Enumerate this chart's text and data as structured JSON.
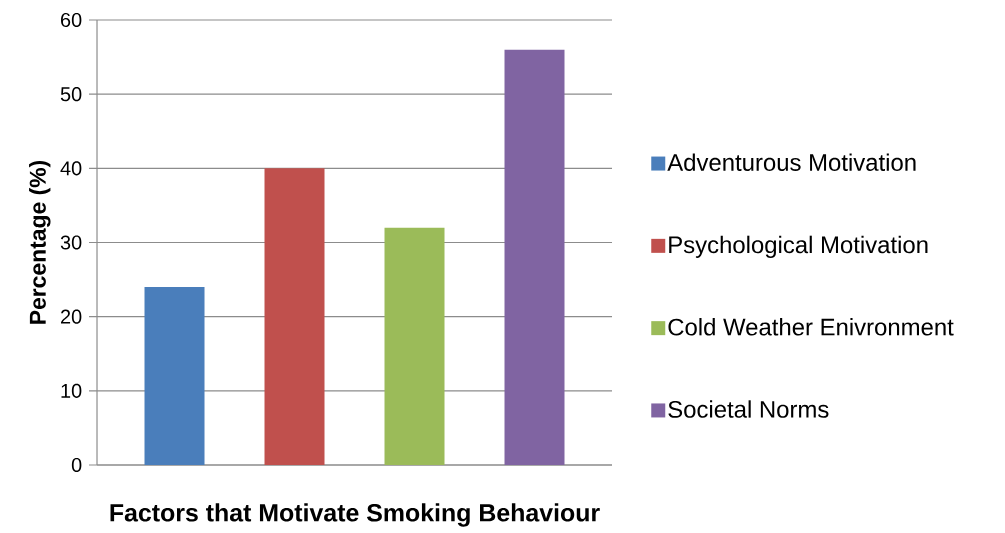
{
  "chart_data": {
    "type": "bar",
    "xlabel": "Factors that Motivate Smoking Behaviour",
    "ylabel": "Percentage (%)",
    "categories": [
      null
    ],
    "series": [
      {
        "name": "Adventurous Motivation",
        "color": "#4a7ebb",
        "values": [
          24
        ]
      },
      {
        "name": "Psychological Motivation",
        "color": "#c0504d",
        "values": [
          40
        ]
      },
      {
        "name": "Cold Weather Enivronment",
        "color": "#9bbb59",
        "values": [
          32
        ]
      },
      {
        "name": "Societal Norms",
        "color": "#8064a2",
        "values": [
          56
        ]
      }
    ],
    "ylim": [
      0,
      60
    ],
    "yticks": [
      0,
      10,
      20,
      30,
      40,
      50,
      60
    ],
    "grid": "y",
    "legend": "right"
  }
}
